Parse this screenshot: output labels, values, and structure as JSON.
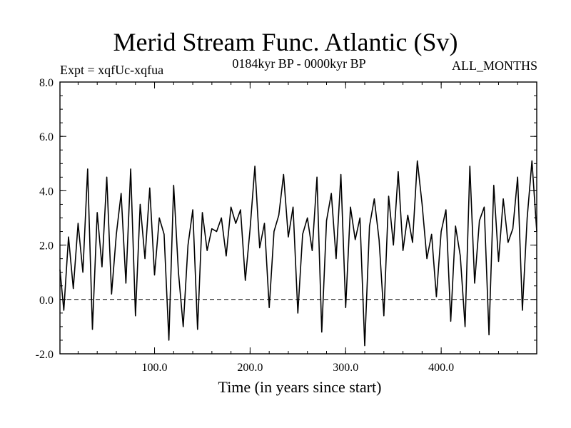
{
  "chart_data": {
    "type": "line",
    "title": "Merid Stream Func. Atlantic (Sv)",
    "subtitle": "0184kyr BP - 0000kyr BP",
    "annotations": [
      "Expt = xqfUc-xqfua",
      "ALL_MONTHS"
    ],
    "xlabel": "Time (in years since start)",
    "ylabel": "",
    "xlim": [
      1,
      500
    ],
    "ylim": [
      -2.0,
      8.0
    ],
    "xticks": [
      100,
      200,
      300,
      400
    ],
    "xtick_labels": [
      "100.0",
      "200.0",
      "300.0",
      "400.0"
    ],
    "yticks": [
      -2,
      0,
      2,
      4,
      6,
      8
    ],
    "ytick_labels": [
      "-2.0",
      "0.0",
      "2.0",
      "4.0",
      "6.0",
      "8.0"
    ],
    "reference_line": {
      "y": 0.0,
      "style": "dashed"
    },
    "grid": false,
    "series": [
      {
        "color": "#000000",
        "x": [
          1,
          5,
          10,
          15,
          20,
          25,
          30,
          35,
          40,
          45,
          50,
          55,
          60,
          65,
          70,
          75,
          80,
          85,
          90,
          95,
          100,
          105,
          110,
          115,
          120,
          125,
          130,
          135,
          140,
          145,
          150,
          155,
          160,
          165,
          170,
          175,
          180,
          185,
          190,
          195,
          200,
          205,
          210,
          215,
          220,
          225,
          230,
          235,
          240,
          245,
          250,
          255,
          260,
          265,
          270,
          275,
          280,
          285,
          290,
          295,
          300,
          305,
          310,
          315,
          320,
          325,
          330,
          335,
          340,
          345,
          350,
          355,
          360,
          365,
          370,
          375,
          380,
          385,
          390,
          395,
          400,
          405,
          410,
          415,
          420,
          425,
          430,
          435,
          440,
          445,
          450,
          455,
          460,
          465,
          470,
          475,
          480,
          485,
          490,
          495,
          500
        ],
        "y": [
          1.1,
          -0.4,
          2.3,
          0.4,
          2.8,
          1.0,
          4.8,
          -1.1,
          3.2,
          1.2,
          4.5,
          0.2,
          2.4,
          3.9,
          0.6,
          4.8,
          -0.6,
          3.5,
          1.5,
          4.1,
          0.9,
          3.0,
          2.4,
          -1.5,
          4.2,
          1.0,
          -1.0,
          2.0,
          3.3,
          -1.1,
          3.2,
          1.8,
          2.6,
          2.5,
          3.0,
          1.6,
          3.4,
          2.8,
          3.3,
          0.7,
          2.6,
          4.9,
          1.9,
          2.8,
          -0.3,
          2.5,
          3.1,
          4.6,
          2.3,
          3.4,
          -0.5,
          2.4,
          3.0,
          1.8,
          4.5,
          -1.2,
          2.9,
          3.9,
          1.5,
          4.6,
          -0.3,
          3.4,
          2.2,
          3.0,
          -1.7,
          2.7,
          3.7,
          2.2,
          -0.6,
          3.8,
          2.0,
          4.7,
          1.8,
          3.1,
          2.1,
          5.1,
          3.5,
          1.5,
          2.4,
          0.1,
          2.5,
          3.3,
          -0.8,
          2.7,
          1.6,
          -1.0,
          4.9,
          0.6,
          2.9,
          3.4,
          -1.3,
          4.2,
          1.4,
          3.7,
          2.1,
          2.6,
          4.5,
          -0.4,
          3.0,
          5.1,
          2.5
        ]
      }
    ]
  }
}
